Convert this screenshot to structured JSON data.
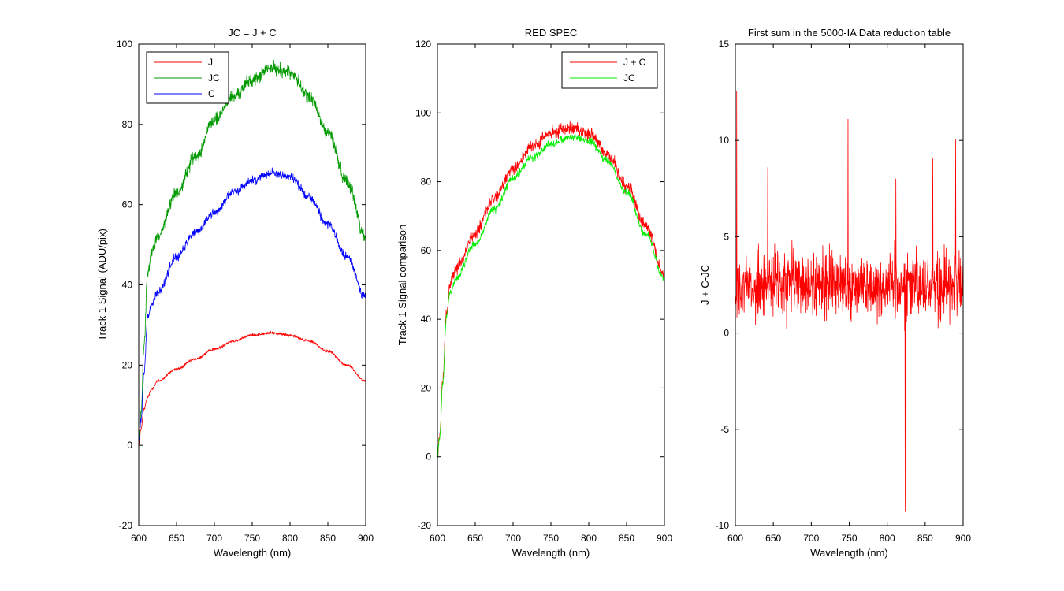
{
  "chart_data": [
    {
      "type": "line",
      "title": "JC = J + C",
      "xlabel": "Wavelength (nm)",
      "ylabel": "Track 1 Signal (ADU/pix)",
      "xlim": [
        600,
        900
      ],
      "ylim": [
        -20,
        100
      ],
      "xticks": [
        600,
        650,
        700,
        750,
        800,
        850,
        900
      ],
      "yticks": [
        -20,
        0,
        20,
        40,
        60,
        80,
        100
      ],
      "grid": false,
      "legend_position": "top-left",
      "noise": [
        0.5,
        2.5,
        1.6
      ],
      "series": [
        {
          "name": "J",
          "color": "#ff0000",
          "x": [
            600,
            603,
            607,
            612,
            617,
            625,
            650,
            675,
            700,
            725,
            750,
            775,
            800,
            825,
            850,
            875,
            900
          ],
          "y": [
            0,
            4,
            9,
            12,
            14,
            16,
            19,
            21.5,
            24,
            26,
            27.5,
            28,
            27.5,
            26,
            23.5,
            20,
            16
          ]
        },
        {
          "name": "JC",
          "color": "#009900",
          "x": [
            600,
            603,
            607,
            612,
            617,
            625,
            650,
            675,
            700,
            725,
            750,
            775,
            800,
            825,
            850,
            875,
            900
          ],
          "y": [
            1,
            8,
            25,
            44,
            48,
            52,
            63,
            72,
            81,
            87,
            91,
            94,
            93,
            87,
            78,
            66,
            52
          ]
        },
        {
          "name": "C",
          "color": "#0000ff",
          "x": [
            600,
            603,
            607,
            612,
            617,
            625,
            650,
            675,
            700,
            725,
            750,
            775,
            800,
            825,
            850,
            875,
            900
          ],
          "y": [
            1,
            6,
            18,
            32,
            35,
            38,
            47,
            53,
            58,
            63,
            66,
            68,
            67,
            62,
            55,
            47,
            37
          ]
        }
      ]
    },
    {
      "type": "line",
      "title": "RED SPEC",
      "xlabel": "Wavelength (nm)",
      "ylabel": "Track 1 Signal comparison",
      "xlim": [
        600,
        900
      ],
      "ylim": [
        -20,
        120
      ],
      "xticks": [
        600,
        650,
        700,
        750,
        800,
        850,
        900
      ],
      "yticks": [
        -20,
        0,
        20,
        40,
        60,
        80,
        100,
        120
      ],
      "grid": false,
      "legend_position": "top-right",
      "noise": [
        2.8,
        1.6
      ],
      "series": [
        {
          "name": "J + C",
          "color": "#ff0000",
          "x": [
            600,
            603,
            607,
            612,
            617,
            625,
            650,
            675,
            700,
            725,
            750,
            775,
            800,
            825,
            850,
            875,
            900
          ],
          "y": [
            0,
            6,
            22,
            42,
            50,
            55,
            65,
            75,
            84,
            90,
            94,
            96,
            94,
            88,
            79,
            67,
            53
          ]
        },
        {
          "name": "JC",
          "color": "#00ee00",
          "x": [
            600,
            603,
            607,
            612,
            617,
            625,
            650,
            675,
            700,
            725,
            750,
            775,
            800,
            825,
            850,
            875,
            900
          ],
          "y": [
            0,
            6,
            21,
            41,
            48,
            52,
            62,
            72,
            81,
            87,
            91,
            93,
            92,
            86,
            77,
            65,
            52
          ]
        }
      ]
    },
    {
      "type": "line",
      "title": "First sum in the 5000-IA Data reduction table",
      "xlabel": "Wavelength (nm)",
      "ylabel": "J + C-JC",
      "xlim": [
        600,
        900
      ],
      "ylim": [
        -10,
        15
      ],
      "xticks": [
        600,
        650,
        700,
        750,
        800,
        850,
        900
      ],
      "yticks": [
        -10,
        -5,
        0,
        5,
        10,
        15
      ],
      "grid": false,
      "legend_position": "none",
      "noise": [
        2.6
      ],
      "series": [
        {
          "color": "#ff0000",
          "x": [
            600,
            650,
            700,
            750,
            800,
            850,
            900
          ],
          "y": [
            2.5,
            2.5,
            2.5,
            2.5,
            2.5,
            2.5,
            2.5
          ]
        }
      ]
    }
  ]
}
